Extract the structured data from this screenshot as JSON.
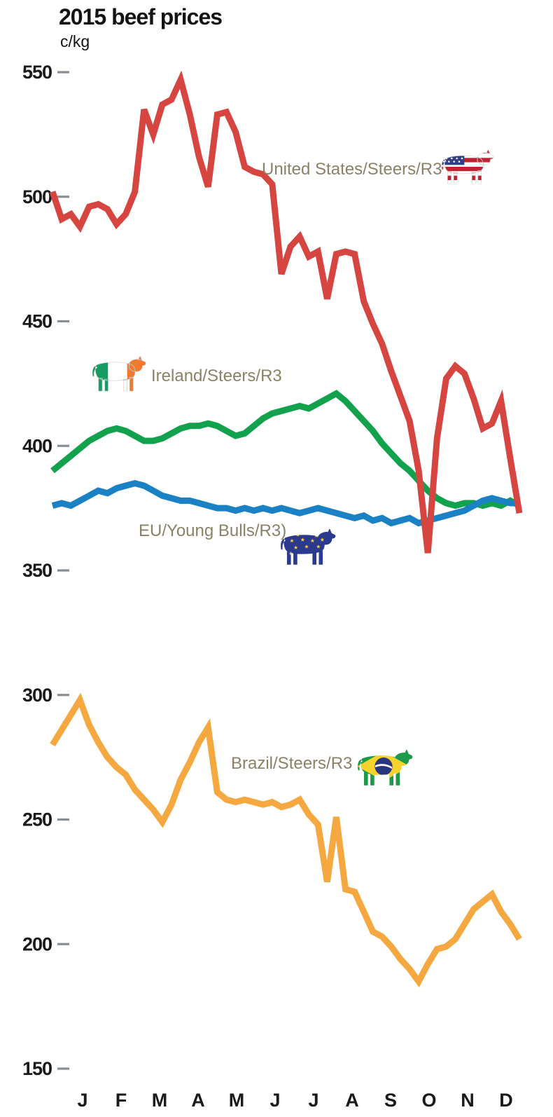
{
  "title": "2015 beef prices",
  "subtitle": "c/kg",
  "chart_data": {
    "type": "line",
    "title": "2015 beef prices",
    "ylabel": "c/kg",
    "xlabel": "",
    "grid": false,
    "legend_position": "inline-annotations",
    "ylim": [
      150,
      560
    ],
    "y_ticks": [
      550,
      500,
      450,
      400,
      350,
      300,
      250,
      200,
      150
    ],
    "x_tick_labels": [
      "J",
      "F",
      "M",
      "A",
      "M",
      "J",
      "J",
      "A",
      "S",
      "O",
      "N",
      "D"
    ],
    "x_unit": "weeks of 2015",
    "series": [
      {
        "key": "us",
        "name": "United States/Steers/R3",
        "color": "#d64540",
        "icon": "cow-us-flag-icon",
        "values": [
          502,
          491,
          493,
          488,
          496,
          497,
          495,
          489,
          493,
          502,
          535,
          525,
          537,
          539,
          547,
          533,
          516,
          504,
          533,
          534,
          526,
          512,
          510,
          509,
          505,
          469,
          480,
          484,
          476,
          478,
          459,
          477,
          478,
          477,
          458,
          449,
          441,
          430,
          420,
          410,
          390,
          357,
          403,
          427,
          432,
          429,
          419,
          407,
          409,
          418,
          395,
          373
        ]
      },
      {
        "key": "ireland",
        "name": "Ireland/Steers/R3",
        "color": "#12a24e",
        "icon": "cow-ireland-flag-icon",
        "values": [
          390,
          393,
          396,
          399,
          402,
          404,
          406,
          407,
          406,
          404,
          402,
          402,
          403,
          405,
          407,
          408,
          408,
          409,
          408,
          406,
          404,
          405,
          408,
          411,
          413,
          414,
          415,
          416,
          415,
          417,
          419,
          421,
          418,
          414,
          410,
          406,
          401,
          397,
          393,
          390,
          386,
          382,
          379,
          377,
          376,
          377,
          377,
          376,
          377,
          376,
          378,
          376
        ]
      },
      {
        "key": "eu",
        "name": "EU/Young Bulls/R3)",
        "color": "#1b81c5",
        "icon": "cow-eu-flag-icon",
        "values": [
          376,
          377,
          376,
          378,
          380,
          382,
          381,
          383,
          384,
          385,
          384,
          382,
          380,
          379,
          378,
          378,
          377,
          376,
          375,
          375,
          374,
          375,
          374,
          375,
          374,
          375,
          374,
          373,
          374,
          375,
          374,
          373,
          372,
          371,
          372,
          370,
          371,
          369,
          370,
          371,
          369,
          370,
          371,
          372,
          373,
          374,
          376,
          378,
          379,
          378,
          377,
          377
        ]
      },
      {
        "key": "brazil",
        "name": "Brazil/Steers/R3",
        "color": "#f6a840",
        "icon": "cow-brazil-flag-icon",
        "values": [
          280,
          286,
          292,
          298,
          288,
          281,
          275,
          271,
          268,
          262,
          258,
          254,
          249,
          256,
          266,
          273,
          281,
          287,
          261,
          258,
          257,
          258,
          257,
          256,
          257,
          255,
          256,
          258,
          252,
          248,
          225,
          251,
          222,
          221,
          213,
          205,
          203,
          199,
          194,
          190,
          185,
          192,
          198,
          199,
          202,
          208,
          214,
          217,
          220,
          213,
          208,
          202
        ]
      }
    ]
  },
  "colors": {
    "axis_text": "#1a1a1a",
    "tick_dash": "#898e92",
    "legend_text": "#8a8266",
    "us_line": "#d64540",
    "ireland_line": "#12a24e",
    "eu_line": "#1b81c5",
    "brazil_line": "#f6a840"
  },
  "icons": {
    "us_flag": [
      "#bf2333",
      "#ffffff",
      "#323f84"
    ],
    "ireland_flag": [
      "#169b62",
      "#ffffff",
      "#f1792c"
    ],
    "eu_flag": [
      "#2b3a8c",
      "#f7c93d"
    ],
    "brazil_flag": [
      "#1c9a49",
      "#f5d22c",
      "#2a3580",
      "#ffffff"
    ]
  }
}
